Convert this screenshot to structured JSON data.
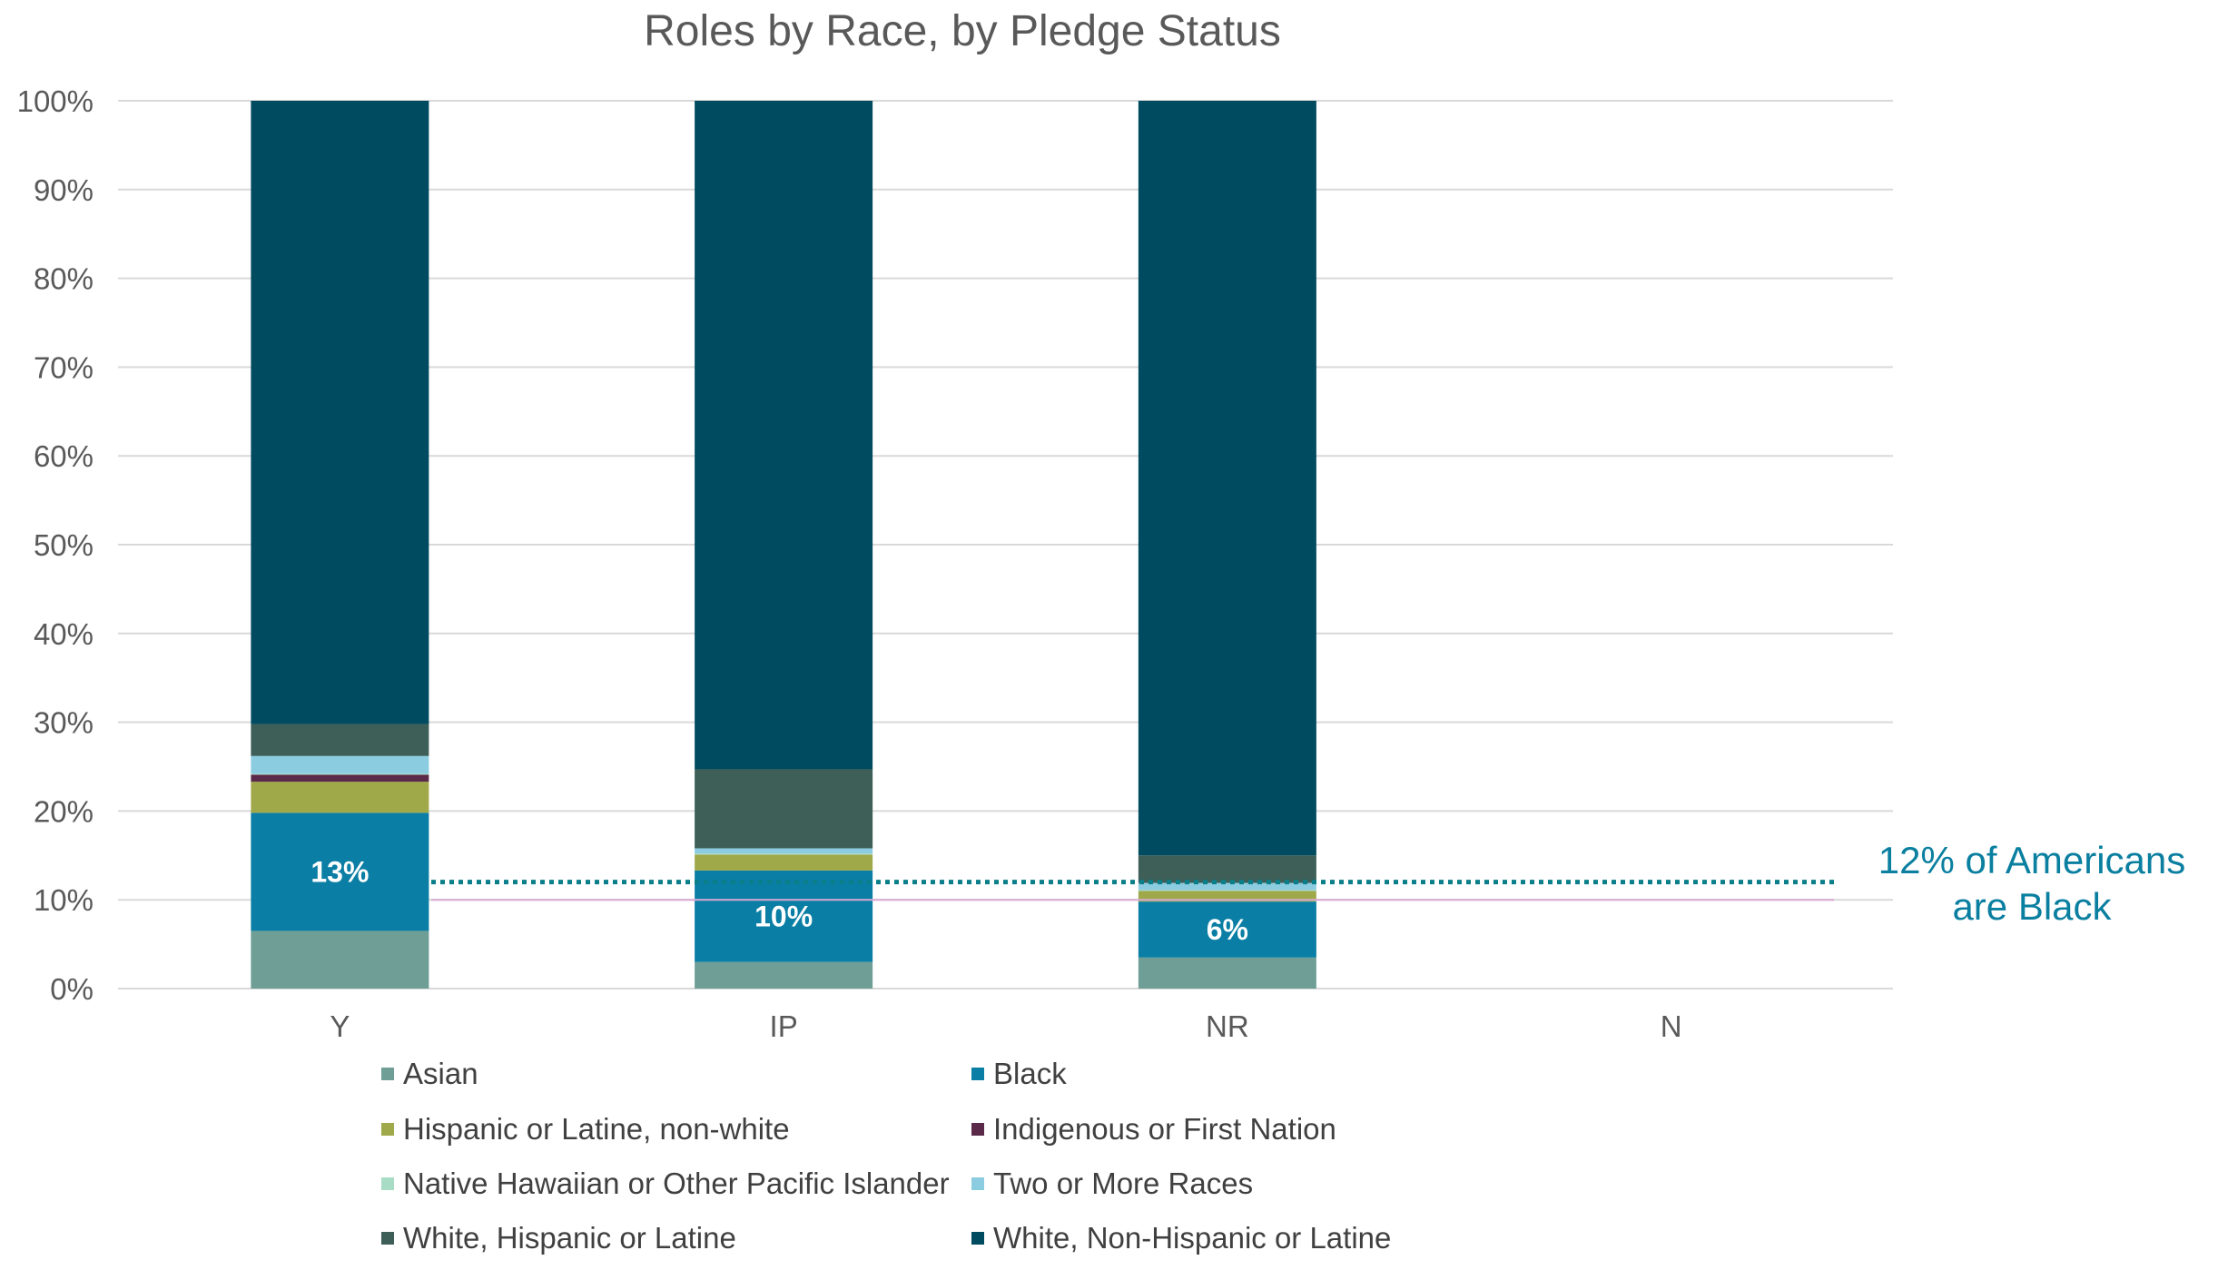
{
  "chart_data": {
    "type": "bar",
    "stacked": true,
    "percent": true,
    "title": "Roles by Race, by Pledge Status",
    "xlabel": "",
    "ylabel": "",
    "categories": [
      "Y",
      "IP",
      "NR",
      "N"
    ],
    "ylim": [
      0,
      100
    ],
    "yticks": [
      "0%",
      "10%",
      "20%",
      "30%",
      "40%",
      "50%",
      "60%",
      "70%",
      "80%",
      "90%",
      "100%"
    ],
    "grid": true,
    "legend_position": "bottom",
    "series": [
      {
        "name": "Asian",
        "color": "#6e9e96",
        "values": [
          6.5,
          3.0,
          3.5,
          null
        ]
      },
      {
        "name": "Black",
        "color": "#0a7ea4",
        "values": [
          13.3,
          10.3,
          6.3,
          null
        ]
      },
      {
        "name": "Hispanic or Latine, non-white",
        "color": "#a0a94a",
        "values": [
          3.5,
          1.8,
          1.2,
          null
        ]
      },
      {
        "name": "Indigenous or First Nation",
        "color": "#5b2a4a",
        "values": [
          0.8,
          0.0,
          0.0,
          null
        ]
      },
      {
        "name": "Native Hawaiian or Other Pacific Islander",
        "color": "#a8dcc4",
        "values": [
          0.1,
          0.1,
          0.1,
          null
        ]
      },
      {
        "name": "Two or More Races",
        "color": "#8ccce0",
        "values": [
          2.0,
          0.6,
          0.8,
          null
        ]
      },
      {
        "name": "White, Hispanic or Latine",
        "color": "#3e5e58",
        "values": [
          3.6,
          8.9,
          3.1,
          null
        ]
      },
      {
        "name": "White, Non-Hispanic or Latine",
        "color": "#004b60",
        "values": [
          70.2,
          75.3,
          85.0,
          null
        ]
      }
    ],
    "data_labels": [
      {
        "category": "Y",
        "series": "Black",
        "text": "13%"
      },
      {
        "category": "IP",
        "series": "Black",
        "text": "10%"
      },
      {
        "category": "NR",
        "series": "Black",
        "text": "6%"
      }
    ],
    "reference_lines": [
      {
        "value": 12,
        "style": "dotted",
        "color": "#0a7f8a"
      },
      {
        "value": 10,
        "style": "solid",
        "color": "#d9a8d4"
      }
    ],
    "annotation": {
      "lines": [
        "12% of Americans",
        "are Black"
      ],
      "color": "#0a7fa0"
    }
  }
}
